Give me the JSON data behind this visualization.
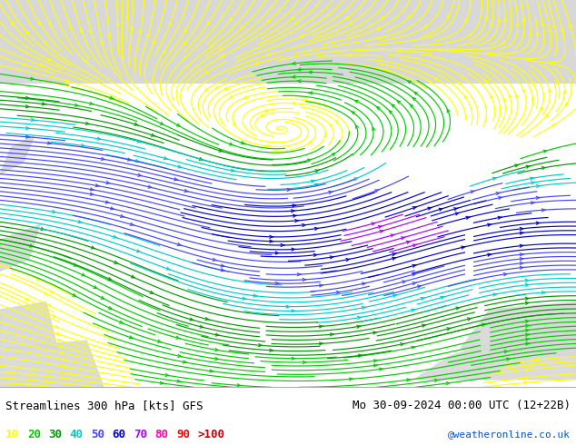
{
  "title_left": "Streamlines 300 hPa [kts] GFS",
  "title_right": "Mo 30-09-2024 00:00 UTC (12+22B)",
  "credit": "@weatheronline.co.uk",
  "legend_values": [
    "10",
    "20",
    "30",
    "40",
    "50",
    "60",
    "70",
    "80",
    "90",
    ">100"
  ],
  "legend_colors": [
    "#ffff00",
    "#00cc00",
    "#009900",
    "#00cccc",
    "#4444ff",
    "#0000cc",
    "#aa00ff",
    "#ff00aa",
    "#ff0000",
    "#cc0000"
  ],
  "bg_map_color": "#bbee88",
  "bg_polar_color": "#d8d8d8",
  "bg_land_color": "#d8d8d8",
  "bg_ocean_color": "#bbee88",
  "bottom_bg": "#ffffff",
  "title_fontsize": 9,
  "credit_fontsize": 8,
  "legend_fontsize": 9,
  "figsize": [
    6.34,
    4.9
  ],
  "dpi": 100,
  "speed_thresholds": [
    [
      0,
      15,
      "#ffff00"
    ],
    [
      15,
      25,
      "#00cc00"
    ],
    [
      25,
      35,
      "#009900"
    ],
    [
      35,
      45,
      "#00cccc"
    ],
    [
      45,
      55,
      "#4444ff"
    ],
    [
      55,
      65,
      "#0000cc"
    ],
    [
      65,
      75,
      "#aa00ff"
    ],
    [
      75,
      85,
      "#ff00aa"
    ],
    [
      85,
      95,
      "#ff0000"
    ],
    [
      95,
      999,
      "#cc0000"
    ]
  ]
}
